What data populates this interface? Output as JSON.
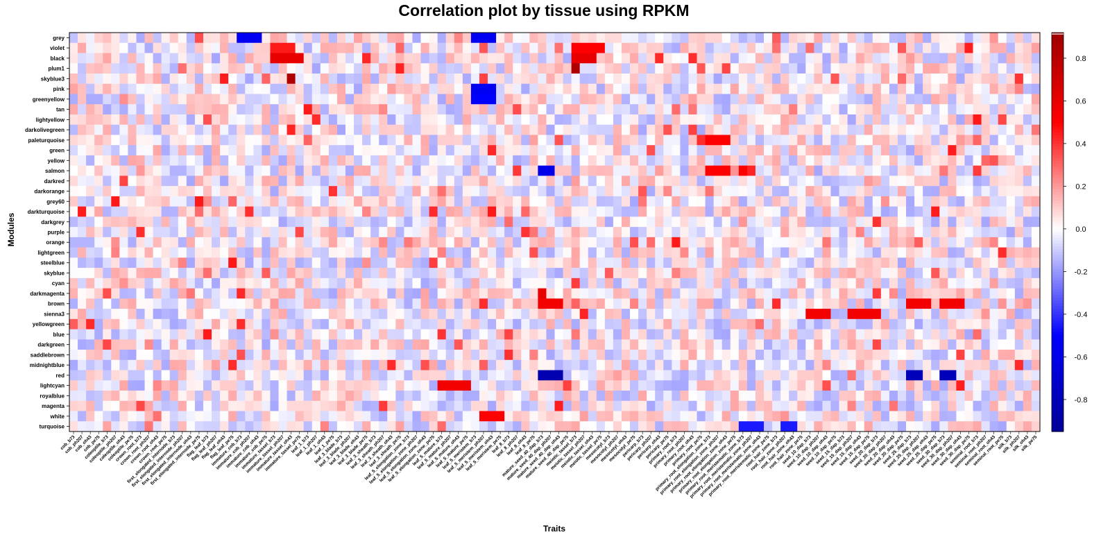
{
  "chart_data": {
    "type": "heatmap",
    "title": "Correlation plot by tissue using RPKM",
    "xlabel": "Traits",
    "ylabel": "Modules",
    "rows": [
      "grey",
      "violet",
      "black",
      "plum1",
      "skyblue3",
      "pink",
      "greenyellow",
      "tan",
      "lightyellow",
      "darkolivegreen",
      "paleturquoise",
      "green",
      "yellow",
      "salmon",
      "darkred",
      "darkorange",
      "grey60",
      "darkturquoise",
      "darkgrey",
      "purple",
      "orange",
      "lightgreen",
      "steelblue",
      "skyblue",
      "cyan",
      "darkmagenta",
      "brown",
      "sienna3",
      "yellowgreen",
      "blue",
      "darkgreen",
      "saddlebrown",
      "midnightblue",
      "red",
      "lightcyan",
      "royalblue",
      "magenta",
      "white",
      "turquoise"
    ],
    "columns": [
      "cob_b73",
      "cob_ph207",
      "cob_oh43",
      "cob_pe75",
      "coleoptile_b73",
      "coleoptile_ph207",
      "coleoptile_oh43",
      "coleoptile_pe75",
      "crown_root_b73",
      "crown_root_ph207",
      "crown_root_oh43",
      "crown_root_pe75",
      "first_elongated_internode_b73",
      "first_elongated_internode_ph207",
      "first_elongated_internode_oh43",
      "first_elongated_internode_pe75",
      "flag_leaf_b73",
      "flag_leaf_ph207",
      "flag_leaf_oh43",
      "flag_leaf_pe75",
      "immature_cob_b73",
      "immature_cob_ph207",
      "immature_cob_oh43",
      "immature_cob_pe75",
      "immature_tassel_b73",
      "immature_tassel_ph207",
      "immature_tassel_oh43",
      "immature_tassel_pe75",
      "leaf_1_b73",
      "leaf_1_ph207",
      "leaf_1_oh43",
      "leaf_1_pe75",
      "leaf_3_blade_b73",
      "leaf_3_blade_ph207",
      "leaf_3_blade_oh43",
      "leaf_3_blade_pe75",
      "leaf_3_sheath_b73",
      "leaf_3_sheath_ph207",
      "leaf_3_sheath_oh43",
      "leaf_3_sheath_pe75",
      "leaf_5_elongation_zone_b73",
      "leaf_5_elongation_zone_ph207",
      "leaf_5_elongation_zone_oh43",
      "leaf_5_elongation_zone_pe75",
      "leaf_5_mature_b73",
      "leaf_5_mature_ph207",
      "leaf_5_mature_oh43",
      "leaf_5_mature_pe75",
      "leaf_5_meristem_b73",
      "leaf_5_meristem_ph207",
      "leaf_5_meristem_oh43",
      "leaf_5_meristem_pe75",
      "leaf_8_b73",
      "leaf_8_ph207",
      "leaf_8_oh43",
      "leaf_8_pe75",
      "mature_seed_40_dap_b73",
      "mature_seed_40_dap_ph207",
      "mature_seed_40_dap_oh43",
      "mature_seed_40_dap_pe75",
      "meiotic_tassel_b73",
      "meiotic_tassel_ph207",
      "meiotic_tassel_oh43",
      "meiotic_tassel_pe75",
      "mesocotyl_b73",
      "mesocotyl_ph207",
      "mesocotyl_oh43",
      "mesocotyl_pe75",
      "pericarp_b73",
      "pericarp_ph207",
      "pericarp_oh43",
      "pericarp_pe75",
      "primary_root_b73",
      "primary_root_ph207",
      "primary_root_oh43",
      "primary_root_pe75",
      "primary_root_elongation_zone_b73",
      "primary_root_elongation_zone_ph207",
      "primary_root_elongation_zone_oh43",
      "primary_root_elongation_zone_pe75",
      "primary_root_meristematic_zone_b73",
      "primary_root_meristematic_zone_ph207",
      "primary_root_meristematic_zone_oh43",
      "primary_root_meristematic_zone_pe75",
      "root_hair_zone_b73",
      "root_hair_zone_ph207",
      "root_hair_zone_oh43",
      "root_hair_zone_pe75",
      "seed_10_dap_b73",
      "seed_10_dap_ph207",
      "seed_10_dap_oh43",
      "seed_10_dap_pe75",
      "seed_15_dap_b73",
      "seed_15_dap_ph207",
      "seed_15_dap_oh43",
      "seed_15_dap_pe75",
      "seed_20_dap_b73",
      "seed_20_dap_ph207",
      "seed_20_dap_oh43",
      "seed_20_dap_pe75",
      "seed_25_dap_b73",
      "seed_25_dap_ph207",
      "seed_25_dap_oh43",
      "seed_25_dap_pe75",
      "seed_30_dap_b73",
      "seed_30_dap_ph207",
      "seed_30_dap_oh43",
      "seed_30_dap_pe75",
      "seminal_root_b73",
      "seminal_root_ph207",
      "seminal_root_oh43",
      "seminal_root_pe75",
      "silk_b73",
      "silk_ph207",
      "silk_oh43",
      "silk_pe75"
    ],
    "value_range": [
      -0.95,
      0.92
    ],
    "colorbar_ticks": [
      -0.8,
      -0.6,
      -0.4,
      -0.2,
      0.0,
      0.2,
      0.4,
      0.6,
      0.8
    ],
    "colorbar_tick_labels": [
      "-0.8",
      "-0.6",
      "-0.4",
      "-0.2",
      "0.0",
      "0.2",
      "0.4",
      "0.6",
      "0.8"
    ],
    "colorscale": [
      "#00008B",
      "#0000FF",
      "#FFFFFF",
      "#FF0000",
      "#8B0000"
    ],
    "highlights": [
      {
        "row": "black",
        "columns": [
          "immature_tassel_b73",
          "immature_tassel_ph207",
          "immature_tassel_oh43",
          "immature_tassel_pe75"
        ],
        "value": 0.6
      },
      {
        "row": "violet",
        "columns": [
          "immature_tassel_b73",
          "immature_tassel_ph207",
          "immature_tassel_oh43"
        ],
        "value": 0.45
      },
      {
        "row": "skyblue3",
        "columns": [
          "immature_tassel_oh43"
        ],
        "value": 0.85
      },
      {
        "row": "black",
        "columns": [
          "meiotic_tassel_b73",
          "meiotic_tassel_ph207",
          "meiotic_tassel_oh43"
        ],
        "value": 0.6
      },
      {
        "row": "violet",
        "columns": [
          "meiotic_tassel_b73",
          "meiotic_tassel_ph207",
          "meiotic_tassel_oh43",
          "meiotic_tassel_pe75"
        ],
        "value": 0.5
      },
      {
        "row": "plum1",
        "columns": [
          "meiotic_tassel_b73"
        ],
        "value": 0.85
      },
      {
        "row": "grey",
        "columns": [
          "immature_cob_b73",
          "immature_cob_ph207",
          "immature_cob_oh43",
          "leaf_5_meristem_b73",
          "leaf_5_meristem_ph207",
          "leaf_5_meristem_oh43"
        ],
        "value": -0.55
      },
      {
        "row": "pink",
        "columns": [
          "leaf_5_meristem_b73",
          "leaf_5_meristem_ph207",
          "leaf_5_meristem_oh43"
        ],
        "value": -0.55
      },
      {
        "row": "greenyellow",
        "columns": [
          "leaf_5_meristem_b73",
          "leaf_5_meristem_ph207",
          "leaf_5_meristem_oh43"
        ],
        "value": -0.5
      },
      {
        "row": "paleturquoise",
        "columns": [
          "primary_root_elongation_zone_b73",
          "primary_root_elongation_zone_ph207",
          "primary_root_elongation_zone_oh43"
        ],
        "value": 0.5
      },
      {
        "row": "salmon",
        "columns": [
          "primary_root_elongation_zone_b73",
          "primary_root_elongation_zone_ph207",
          "primary_root_elongation_zone_oh43",
          "primary_root_meristematic_zone_b73"
        ],
        "value": 0.5
      },
      {
        "row": "salmon",
        "columns": [
          "mature_seed_40_dap_b73",
          "mature_seed_40_dap_ph207"
        ],
        "value": -0.6
      },
      {
        "row": "brown",
        "columns": [
          "mature_seed_40_dap_b73",
          "mature_seed_40_dap_ph207",
          "mature_seed_40_dap_oh43"
        ],
        "value": 0.55
      },
      {
        "row": "darkmagenta",
        "columns": [
          "mature_seed_40_dap_b73"
        ],
        "value": 0.6
      },
      {
        "row": "red",
        "columns": [
          "mature_seed_40_dap_b73",
          "mature_seed_40_dap_ph207",
          "mature_seed_40_dap_oh43"
        ],
        "value": -0.85
      },
      {
        "row": "lightcyan",
        "columns": [
          "leaf_5_mature_b73",
          "leaf_5_mature_ph207",
          "leaf_5_mature_oh43",
          "leaf_5_mature_pe75"
        ],
        "value": 0.55
      },
      {
        "row": "sienna3",
        "columns": [
          "seed_10_dap_b73",
          "seed_10_dap_ph207",
          "seed_10_dap_oh43",
          "seed_15_dap_ph207",
          "seed_15_dap_oh43",
          "seed_15_dap_pe75",
          "seed_20_dap_b73"
        ],
        "value": 0.55
      },
      {
        "row": "brown",
        "columns": [
          "seed_25_dap_b73",
          "seed_25_dap_ph207",
          "seed_25_dap_oh43",
          "seed_30_dap_b73",
          "seed_30_dap_ph207",
          "seed_30_dap_oh43"
        ],
        "value": 0.55
      },
      {
        "row": "red",
        "columns": [
          "seed_25_dap_b73",
          "seed_25_dap_ph207",
          "seed_30_dap_b73",
          "seed_30_dap_ph207"
        ],
        "value": -0.8
      },
      {
        "row": "turquoise",
        "columns": [
          "primary_root_meristematic_zone_b73",
          "primary_root_meristematic_zone_ph207",
          "primary_root_meristematic_zone_oh43",
          "root_hair_zone_ph207",
          "root_hair_zone_oh43"
        ],
        "value": -0.45
      },
      {
        "row": "white",
        "columns": [
          "leaf_5_meristem_ph207",
          "leaf_5_meristem_oh43",
          "leaf_5_meristem_pe75"
        ],
        "value": 0.5
      }
    ]
  }
}
